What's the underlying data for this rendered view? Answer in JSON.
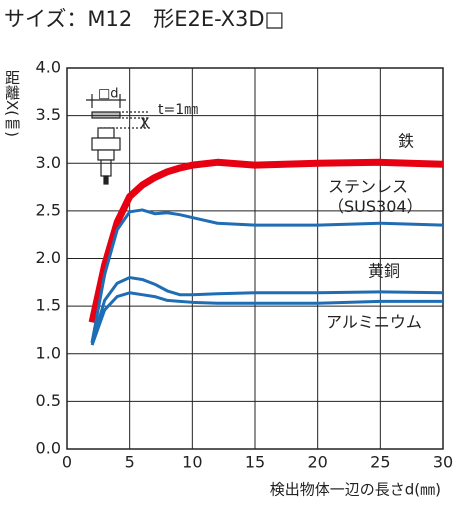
{
  "chart_data": {
    "type": "line",
    "title": "サイズ：M12　形E2E-X3D□",
    "x_label": "検出物体一辺の長さd(㎜)",
    "y_label": "距離X(㎜)",
    "annotations": {
      "side": "□d",
      "thickness": "t=1㎜",
      "distance": "X"
    },
    "x": [
      2,
      3,
      4,
      5,
      6,
      7,
      8,
      9,
      10,
      12,
      15,
      20,
      25,
      30
    ],
    "series": [
      {
        "name": "鉄",
        "color": "#e60012",
        "values": [
          1.33,
          1.93,
          2.38,
          2.65,
          2.77,
          2.85,
          2.91,
          2.95,
          2.98,
          3.01,
          2.98,
          3.0,
          3.01,
          2.99
        ]
      },
      {
        "name": "ステンレス\n（SUS304）",
        "color": "#1e6db5",
        "values": [
          1.12,
          1.83,
          2.3,
          2.49,
          2.51,
          2.47,
          2.48,
          2.46,
          2.43,
          2.37,
          2.35,
          2.35,
          2.37,
          2.35
        ]
      },
      {
        "name": "黄銅",
        "color": "#1e6db5",
        "values": [
          1.11,
          1.56,
          1.74,
          1.8,
          1.78,
          1.73,
          1.66,
          1.62,
          1.62,
          1.63,
          1.64,
          1.64,
          1.65,
          1.64
        ]
      },
      {
        "name": "アルミニウム",
        "color": "#1e6db5",
        "values": [
          1.09,
          1.46,
          1.6,
          1.64,
          1.62,
          1.6,
          1.56,
          1.55,
          1.54,
          1.53,
          1.53,
          1.53,
          1.55,
          1.55
        ]
      }
    ],
    "xlim": [
      0,
      30
    ],
    "xticks": [
      0,
      5,
      10,
      15,
      20,
      25,
      30
    ],
    "ylim": [
      0,
      4
    ],
    "yticks": [
      {
        "value": 0,
        "label": "0.0"
      },
      {
        "value": 0.5,
        "label": "0.5"
      },
      {
        "value": 1,
        "label": "1.0"
      },
      {
        "value": 1.5,
        "label": "1.5"
      },
      {
        "value": 2,
        "label": "2.0"
      },
      {
        "value": 2.5,
        "label": "2.5"
      },
      {
        "value": 3,
        "label": "3.0"
      },
      {
        "value": 3.5,
        "label": "3.5"
      },
      {
        "value": 4,
        "label": "4.0"
      }
    ],
    "grid": true
  }
}
